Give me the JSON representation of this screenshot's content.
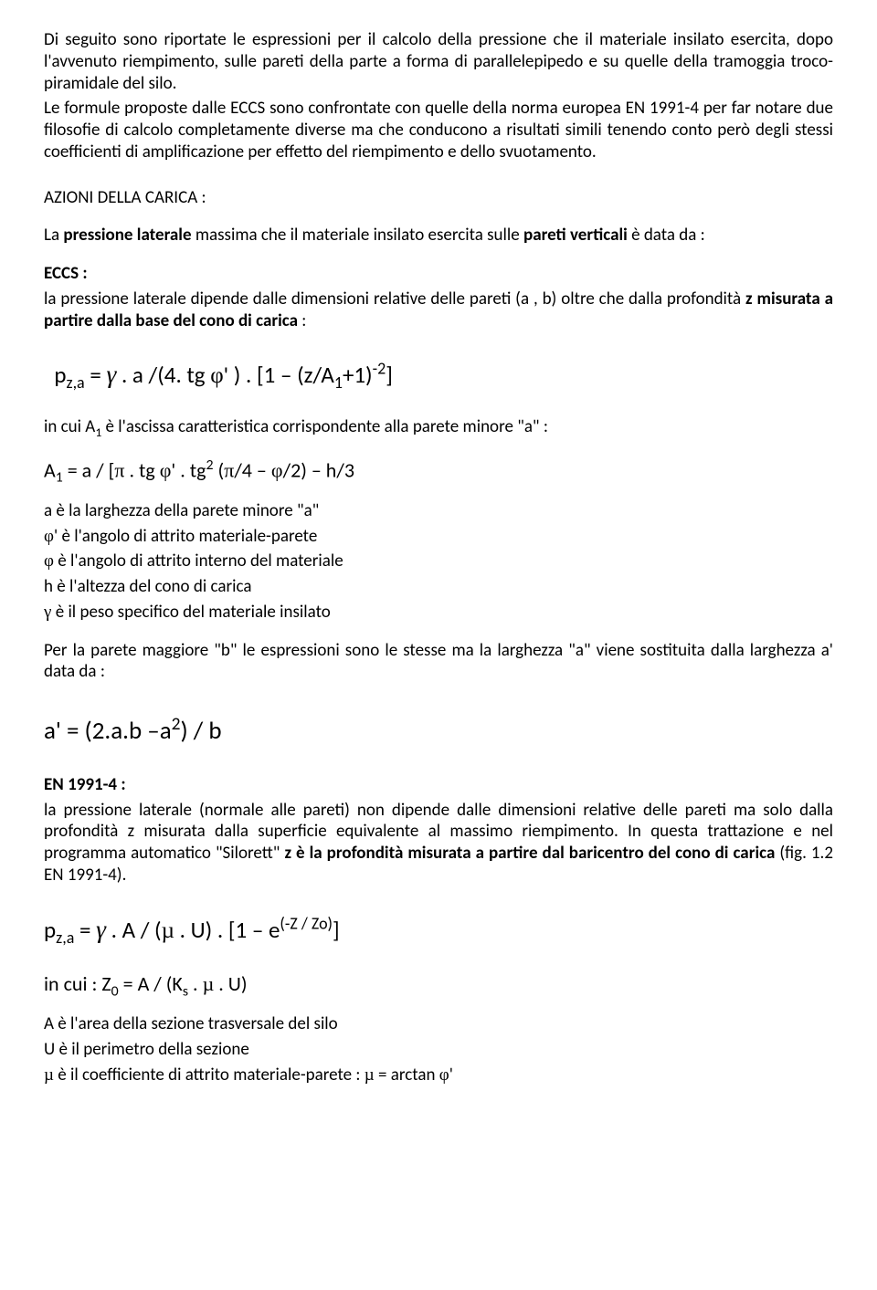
{
  "intro": {
    "p1": "Di seguito sono riportate le espressioni per il calcolo della pressione che il materiale insilato esercita, dopo l'avvenuto riempimento,  sulle pareti della parte a forma di parallelepipedo e su quelle della tramoggia troco-piramidale del silo.",
    "p2": "Le formule proposte dalle ECCS sono confrontate con quelle della norma europea EN 1991-4 per far notare due filosofie di calcolo completamente diverse ma che conducono a risultati simili tenendo conto però degli stessi coefficienti di amplificazione per effetto del riempimento e dello svuotamento."
  },
  "sectionTitle": "AZIONI DELLA CARICA :",
  "lateral": {
    "intro_pre": "La ",
    "intro_b1": "pressione laterale",
    "intro_mid": " massima che il materiale insilato esercita sulle ",
    "intro_b2": "pareti verticali",
    "intro_post": " è data da :"
  },
  "eccs": {
    "label": "ECCS :",
    "desc_pre": "la pressione laterale dipende dalle dimensioni relative delle pareti (a , b) oltre che dalla profondità ",
    "desc_bold": "z misurata a partire dalla base del cono di carica",
    "desc_post": " :",
    "formula": {
      "lhs_p": "p",
      "lhs_sub": "z,a",
      "eq": " =  ",
      "gamma": "γ",
      "part1": " . a /(4. tg ",
      "phi1": "φ",
      "prime1": "' ) . [1 – (z/A",
      "one": "1",
      "plus": "+1)",
      "exp": "-2",
      "close": "]"
    },
    "A1_pre": "in cui  A",
    "A1_sub": "1",
    "A1_post": " è l'ascissa caratteristica corrispondente alla parete minore \"a\" :",
    "A1_formula": {
      "lhs": "A",
      "sub1": "1",
      "body_a": " = a / [",
      "pi": "π",
      "body_b": " . tg ",
      "phi1": "φ",
      "prime": "' . tg",
      "exp2": "2",
      "body_c": " (",
      "pi2": "π",
      "body_d": "/4 – ",
      "phi2": "φ",
      "body_e": "/2) – h/3"
    },
    "defs": {
      "d1": "a è la larghezza della parete minore \"a\"",
      "d2_pre": "φ",
      "d2_post": "' è l'angolo di attrito materiale-parete",
      "d3_pre": "φ",
      "d3_post": " è l'angolo di attrito interno del materiale",
      "d4": "h è l'altezza del cono di carica",
      "d5_pre": "γ",
      "d5_post": " è il peso specifico del materiale insilato"
    },
    "bwall": {
      "p1": "Per la parete maggiore \"b\" le espressioni sono le stesse ma la larghezza \"a\" viene sostituita dalla larghezza a' data da :"
    },
    "aprime_formula": {
      "lhs": "a' = (2.a.b –a",
      "exp": "2",
      "rhs": ") / b"
    }
  },
  "en1991": {
    "label": "EN 1991-4 :",
    "desc_pre": "la pressione laterale (normale alle pareti) non dipende dalle dimensioni relative delle pareti ma solo dalla profondità z misurata dalla superficie equivalente al massimo riempimento. In questa trattazione e nel programma automatico \"Silorett\" ",
    "desc_bold": "z è la profondità misurata a partire dal baricentro del cono di carica",
    "desc_post": " (fig. 1.2 EN 1991-4).",
    "formula": {
      "lhs_p": "p",
      "lhs_sub": "z,a",
      "eq": " =  ",
      "gamma": "γ",
      "body_a": " . A / (",
      "mu1": "µ",
      "body_b": " . U) . [1 – e",
      "exp": "(-Z / Zo)",
      "close": "]"
    },
    "Z0": {
      "pre": "in cui :   Z",
      "sub0": "0",
      "body": " = A / (K",
      "subs": "s",
      "body2": " . ",
      "mu": "µ",
      "body3": " . U)"
    },
    "defs": {
      "d1": "A è l'area della sezione trasversale del silo",
      "d2": "U è il perimetro della sezione",
      "d3_pre": "µ",
      "d3_mid": " è il coefficiente di attrito materiale-parete : ",
      "d3_mu2": "µ",
      "d3_eq": " = arctan ",
      "d3_phi": "φ",
      "d3_post": "'"
    }
  }
}
